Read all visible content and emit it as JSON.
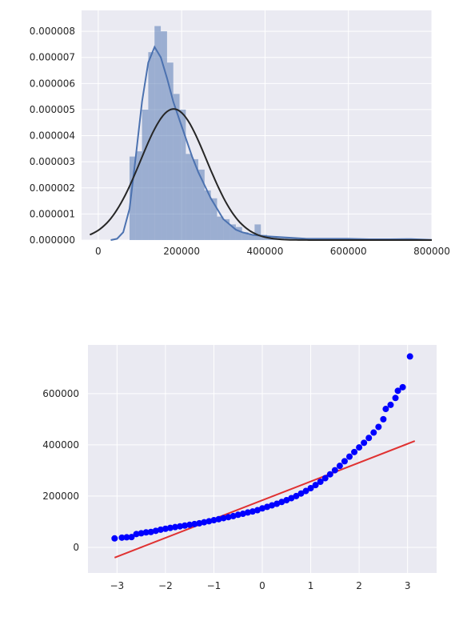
{
  "chart_data": [
    {
      "type": "histogram",
      "xlim": [
        -40000,
        800000
      ],
      "ylim": [
        0,
        8.8e-06
      ],
      "grid": true,
      "x_ticks": [
        0,
        200000,
        400000,
        600000,
        800000
      ],
      "x_tick_labels": [
        "0",
        "200000",
        "400000",
        "600000",
        "800000"
      ],
      "y_ticks": [
        0,
        1e-06,
        2e-06,
        3e-06,
        4e-06,
        5e-06,
        6e-06,
        7e-06,
        8e-06
      ],
      "y_tick_labels": [
        "0.000000",
        "0.000001",
        "0.000002",
        "0.000003",
        "0.000004",
        "0.000005",
        "0.000006",
        "0.000007",
        "0.000008"
      ],
      "colors": {
        "bars": "#4c72b0",
        "kde": "#4c72b0",
        "normal_fit": "#262626",
        "background": "#eaeaf2"
      },
      "bin_width": 15000,
      "bins": [
        [
          75000,
          3.2e-06
        ],
        [
          90000,
          3.4e-06
        ],
        [
          105000,
          5e-06
        ],
        [
          120000,
          7.2e-06
        ],
        [
          135000,
          8.2e-06
        ],
        [
          150000,
          8e-06
        ],
        [
          165000,
          6.8e-06
        ],
        [
          180000,
          5.6e-06
        ],
        [
          195000,
          5e-06
        ],
        [
          210000,
          3.3e-06
        ],
        [
          225000,
          3.1e-06
        ],
        [
          240000,
          2.7e-06
        ],
        [
          255000,
          1.9e-06
        ],
        [
          270000,
          1.6e-06
        ],
        [
          285000,
          9e-07
        ],
        [
          300000,
          8e-07
        ],
        [
          315000,
          6e-07
        ],
        [
          330000,
          5e-07
        ],
        [
          345000,
          3e-07
        ],
        [
          360000,
          2e-07
        ],
        [
          375000,
          6e-07
        ],
        [
          390000,
          2e-07
        ],
        [
          405000,
          1.5e-07
        ],
        [
          420000,
          1e-07
        ],
        [
          435000,
          1e-07
        ],
        [
          450000,
          8e-08
        ],
        [
          465000,
          8e-08
        ],
        [
          480000,
          6e-08
        ],
        [
          495000,
          5e-08
        ],
        [
          510000,
          5e-08
        ],
        [
          540000,
          5e-08
        ],
        [
          555000,
          6e-08
        ],
        [
          585000,
          5e-08
        ],
        [
          615000,
          4e-08
        ],
        [
          735000,
          6e-08
        ],
        [
          750000,
          5e-08
        ]
      ],
      "kde_curve": [
        [
          30000,
          0.0
        ],
        [
          45000,
          5e-08
        ],
        [
          60000,
          3e-07
        ],
        [
          75000,
          1.2e-06
        ],
        [
          90000,
          3.2e-06
        ],
        [
          105000,
          5.3e-06
        ],
        [
          120000,
          6.8e-06
        ],
        [
          135000,
          7.4e-06
        ],
        [
          150000,
          7e-06
        ],
        [
          165000,
          6.2e-06
        ],
        [
          180000,
          5.3e-06
        ],
        [
          195000,
          4.6e-06
        ],
        [
          210000,
          3.9e-06
        ],
        [
          225000,
          3.2e-06
        ],
        [
          240000,
          2.6e-06
        ],
        [
          255000,
          2.1e-06
        ],
        [
          270000,
          1.6e-06
        ],
        [
          285000,
          1.2e-06
        ],
        [
          300000,
          8e-07
        ],
        [
          315000,
          6e-07
        ],
        [
          330000,
          4e-07
        ],
        [
          345000,
          3e-07
        ],
        [
          370000,
          2e-07
        ],
        [
          400000,
          1.5e-07
        ],
        [
          450000,
          1e-07
        ],
        [
          500000,
          5e-08
        ],
        [
          550000,
          5e-08
        ],
        [
          600000,
          5e-08
        ],
        [
          650000,
          3e-08
        ],
        [
          700000,
          3e-08
        ],
        [
          750000,
          4e-08
        ],
        [
          800000,
          1e-08
        ]
      ],
      "normal_fit": {
        "mean": 180900,
        "std": 79400,
        "x_range": [
          -20000,
          800000
        ]
      }
    },
    {
      "type": "scatter",
      "xlim": [
        -3.6,
        3.6
      ],
      "ylim": [
        -100000,
        790000
      ],
      "grid": true,
      "x_ticks": [
        -3,
        -2,
        -1,
        0,
        1,
        2,
        3
      ],
      "x_tick_labels": [
        "−3",
        "−2",
        "−1",
        "0",
        "1",
        "2",
        "3"
      ],
      "y_ticks": [
        0,
        200000,
        400000,
        600000
      ],
      "y_tick_labels": [
        "0",
        "200000",
        "400000",
        "600000"
      ],
      "colors": {
        "points": "#0000ff",
        "fit_line": "#e03232",
        "background": "#eaeaf2"
      },
      "points": [
        [
          -3.05,
          34900
        ],
        [
          -2.9,
          37900
        ],
        [
          -2.8,
          39300
        ],
        [
          -2.7,
          40000
        ],
        [
          -2.6,
          52000
        ],
        [
          -2.5,
          55000
        ],
        [
          -2.4,
          58500
        ],
        [
          -2.3,
          60000
        ],
        [
          -2.2,
          64500
        ],
        [
          -2.1,
          69000
        ],
        [
          -2.0,
          72500
        ],
        [
          -1.9,
          76000
        ],
        [
          -1.8,
          79000
        ],
        [
          -1.7,
          82000
        ],
        [
          -1.6,
          85000
        ],
        [
          -1.5,
          88000
        ],
        [
          -1.4,
          91000
        ],
        [
          -1.3,
          94000
        ],
        [
          -1.2,
          98000
        ],
        [
          -1.1,
          102000
        ],
        [
          -1.0,
          106000
        ],
        [
          -0.9,
          110000
        ],
        [
          -0.8,
          114000
        ],
        [
          -0.7,
          118000
        ],
        [
          -0.6,
          122000
        ],
        [
          -0.5,
          127000
        ],
        [
          -0.4,
          131000
        ],
        [
          -0.3,
          136000
        ],
        [
          -0.2,
          140000
        ],
        [
          -0.1,
          145000
        ],
        [
          0.0,
          152000
        ],
        [
          0.1,
          158000
        ],
        [
          0.2,
          164000
        ],
        [
          0.3,
          170000
        ],
        [
          0.4,
          177000
        ],
        [
          0.5,
          184000
        ],
        [
          0.6,
          192000
        ],
        [
          0.7,
          200000
        ],
        [
          0.8,
          210000
        ],
        [
          0.9,
          220000
        ],
        [
          1.0,
          231000
        ],
        [
          1.1,
          243000
        ],
        [
          1.2,
          256000
        ],
        [
          1.3,
          270000
        ],
        [
          1.4,
          285000
        ],
        [
          1.5,
          301000
        ],
        [
          1.6,
          318000
        ],
        [
          1.7,
          336000
        ],
        [
          1.8,
          354000
        ],
        [
          1.9,
          372000
        ],
        [
          2.0,
          390000
        ],
        [
          2.1,
          408000
        ],
        [
          2.2,
          427000
        ],
        [
          2.3,
          448000
        ],
        [
          2.4,
          470000
        ],
        [
          2.5,
          500000
        ],
        [
          2.55,
          540000
        ],
        [
          2.65,
          556000
        ],
        [
          2.75,
          583000
        ],
        [
          2.8,
          611000
        ],
        [
          2.9,
          625000
        ],
        [
          3.05,
          745000
        ]
      ],
      "fit_line": {
        "x": [
          -3.05,
          3.15
        ],
        "y": [
          -40000,
          415000
        ]
      }
    }
  ]
}
